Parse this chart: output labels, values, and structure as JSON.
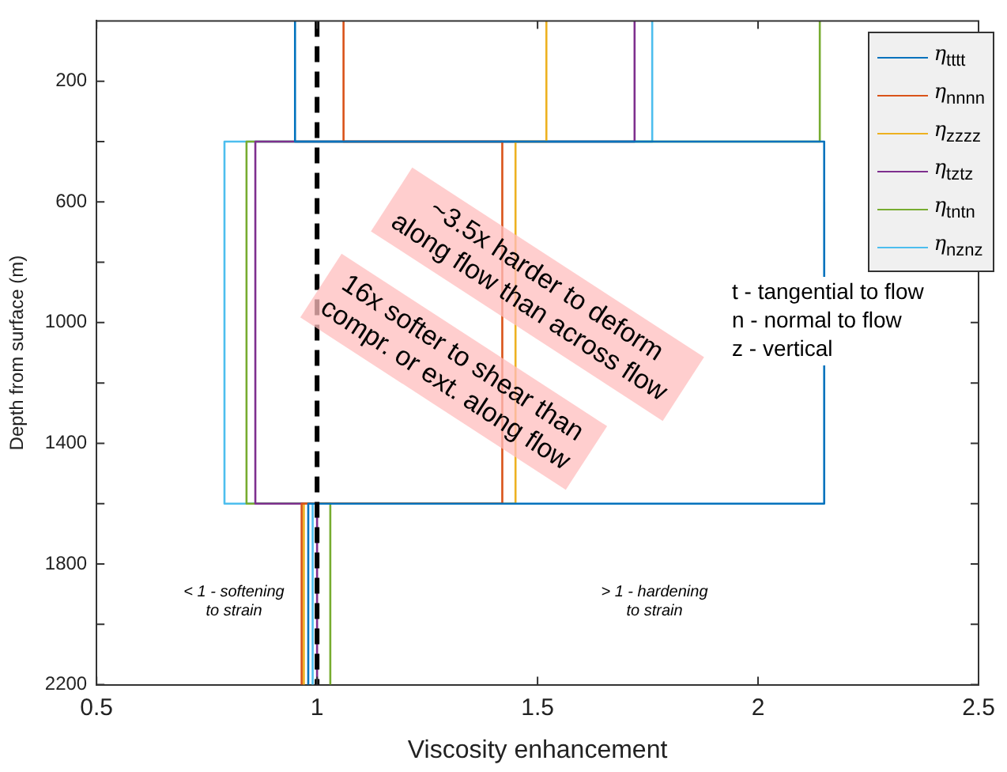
{
  "chart_data": {
    "type": "line",
    "xlabel": "Viscosity enhancement",
    "ylabel": "Depth from surface (m)",
    "xlim": [
      0.5,
      2.5
    ],
    "xticks": [
      0.5,
      1,
      1.5,
      2,
      2.5
    ],
    "ylim": [
      2200,
      0
    ],
    "yticks": [
      200,
      {
        "value": 400,
        "label": null
      },
      600,
      {
        "value": 800,
        "label": null
      },
      1000,
      {
        "value": 1200,
        "label": null
      },
      1400,
      {
        "value": 1600,
        "label": null
      },
      1800,
      {
        "value": 2000,
        "label": null
      },
      2200
    ],
    "grid": false,
    "legend": "top right",
    "marker": "none",
    "line_style": "solid",
    "series": [
      {
        "name": "η$_{tttt}$",
        "color": "#0072bd",
        "x": [
          0.95,
          0.95,
          2.15,
          2.15,
          0.98,
          0.98
        ],
        "values": [
          0,
          400,
          400,
          1600,
          1600,
          2200
        ]
      },
      {
        "name": "η$_{nnnn}$",
        "color": "#d95319",
        "x": [
          1.06,
          1.06,
          1.42,
          1.42,
          0.965,
          0.965
        ],
        "values": [
          0,
          400,
          400,
          1600,
          1600,
          2200
        ]
      },
      {
        "name": "η$_{zzzz}$",
        "color": "#edb120",
        "x": [
          1.52,
          1.52,
          1.45,
          1.45,
          0.97,
          0.97
        ],
        "values": [
          0,
          400,
          400,
          1600,
          1600,
          2200
        ]
      },
      {
        "name": "η$_{tztz}$",
        "color": "#7e2f8e",
        "x": [
          1.72,
          1.72,
          0.86,
          0.86,
          1.0,
          1.0
        ],
        "values": [
          0,
          400,
          400,
          1600,
          1600,
          2200
        ]
      },
      {
        "name": "η$_{tntn}$",
        "color": "#77ac30",
        "x": [
          2.14,
          2.14,
          0.84,
          0.84,
          1.03,
          1.03
        ],
        "values": [
          0,
          400,
          400,
          1600,
          1600,
          2200
        ]
      },
      {
        "name": "η$_{nznz}$",
        "color": "#4dbeee",
        "x": [
          1.76,
          1.76,
          0.79,
          0.79,
          0.99,
          0.99
        ],
        "values": [
          0,
          400,
          400,
          1600,
          1600,
          2200
        ]
      }
    ],
    "ref_lines": [
      {
        "axis": "x",
        "value": 1,
        "color": "#000000",
        "line_style": "dashed"
      }
    ],
    "annotations": [
      "~3.5x harder to deform\nalong flow than across flow",
      "16x softer to shear than\ncompr. or ext. along flow",
      "t - tangential to flow\nn - normal to flow\nz - vertical",
      "< 1 - softening\nto strain",
      "> 1 - hardening\nto strain"
    ]
  }
}
